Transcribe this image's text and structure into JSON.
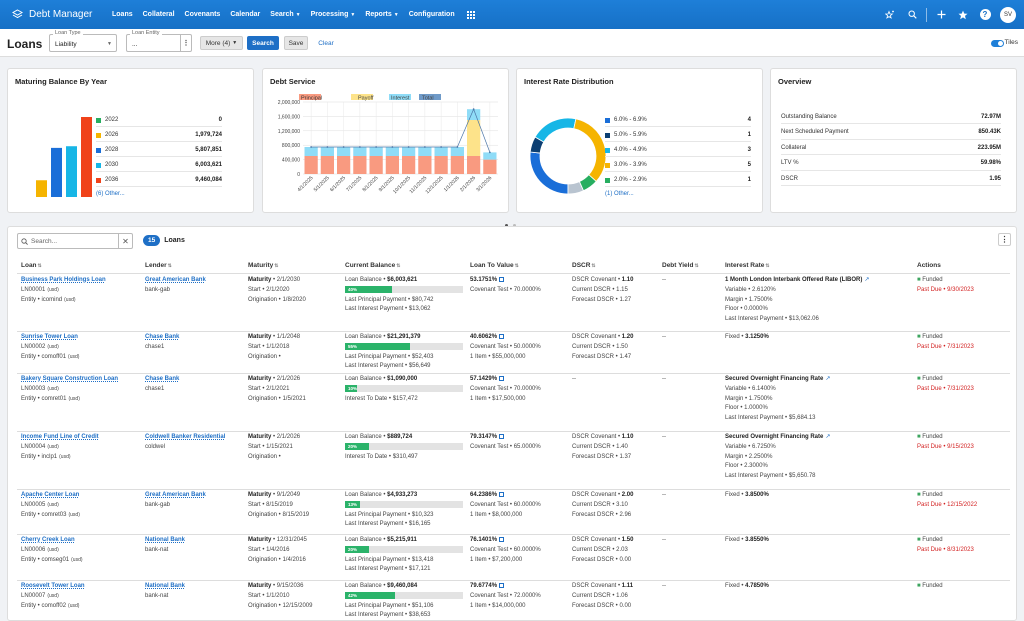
{
  "nav": {
    "app_title": "Debt Manager",
    "items": [
      {
        "label": "Loans",
        "dropdown": false
      },
      {
        "label": "Collateral",
        "dropdown": false
      },
      {
        "label": "Covenants",
        "dropdown": false
      },
      {
        "label": "Calendar",
        "dropdown": false
      },
      {
        "label": "Search",
        "dropdown": true
      },
      {
        "label": "Processing",
        "dropdown": true
      },
      {
        "label": "Reports",
        "dropdown": true
      },
      {
        "label": "Configuration",
        "dropdown": false
      }
    ],
    "avatar": "SV",
    "help": "?"
  },
  "toolbar": {
    "title": "Loans",
    "loan_type_label": "Loan Type",
    "loan_type_value": "Liability",
    "loan_entity_label": "Loan Entity",
    "loan_entity_value": "...",
    "more_label": "More (4)",
    "search_label": "Search",
    "save_label": "Save",
    "clear_label": "Clear",
    "tiles_label": "Tiles"
  },
  "cards": {
    "maturing": {
      "title": "Maturing Balance By Year",
      "rows": [
        {
          "label": "2022",
          "value": "0",
          "color": "#27ae60"
        },
        {
          "label": "2026",
          "value": "1,979,724",
          "color": "#f5b400"
        },
        {
          "label": "2028",
          "value": "5,807,851",
          "color": "#1a6ed8"
        },
        {
          "label": "2030",
          "value": "6,003,621",
          "color": "#17b6e6"
        },
        {
          "label": "2036",
          "value": "9,460,084",
          "color": "#f0421a"
        }
      ],
      "other": "(6) Other..."
    },
    "debt_service": {
      "title": "Debt Service",
      "legend": [
        {
          "label": "Principal",
          "color": "#f99a80"
        },
        {
          "label": "Payoff",
          "color": "#fde38a"
        },
        {
          "label": "Interest",
          "color": "#8fdcf7"
        },
        {
          "label": "Total",
          "color": "#6f9ac8"
        }
      ]
    },
    "interest": {
      "title": "Interest Rate Distribution",
      "rows": [
        {
          "label": "6.0% - 6.9%",
          "value": "4",
          "color": "#1a6ed8"
        },
        {
          "label": "5.0% - 5.9%",
          "value": "1",
          "color": "#0c3f73"
        },
        {
          "label": "4.0% - 4.9%",
          "value": "3",
          "color": "#17b6e6"
        },
        {
          "label": "3.0% - 3.9%",
          "value": "5",
          "color": "#f5b400"
        },
        {
          "label": "2.0% - 2.9%",
          "value": "1",
          "color": "#27ae60"
        }
      ],
      "other": "(1) Other..."
    },
    "overview": {
      "title": "Overview",
      "rows": [
        {
          "label": "Outstanding Balance",
          "value": "72.97M"
        },
        {
          "label": "Next Scheduled Payment",
          "value": "850.43K"
        },
        {
          "label": "Collateral",
          "value": "223.95M"
        },
        {
          "label": "LTV %",
          "value": "59.98%"
        },
        {
          "label": "DSCR",
          "value": "1.95"
        }
      ]
    }
  },
  "chart_data": [
    {
      "type": "bar",
      "title": "Maturing Balance By Year",
      "categories": [
        "2026",
        "2028",
        "2030",
        "2036"
      ],
      "values": [
        1979724,
        5807851,
        6003621,
        9460084
      ],
      "legend": "right"
    },
    {
      "type": "bar",
      "title": "Debt Service",
      "ylim": [
        0,
        2000000
      ],
      "yticks": [
        "2,000,000",
        "1,600,000",
        "1,200,000",
        "800,000",
        "400,000",
        "0"
      ],
      "categories": [
        "4/1/2025",
        "5/1/2025",
        "6/1/2025",
        "7/1/2025",
        "8/1/2025",
        "9/1/2025",
        "10/1/2025",
        "11/1/2025",
        "12/1/2025",
        "1/1/2026",
        "2/1/2026",
        "3/1/2026"
      ],
      "series": [
        {
          "name": "Principal",
          "values": [
            500000,
            500000,
            500000,
            500000,
            500000,
            500000,
            500000,
            500000,
            500000,
            500000,
            500000,
            400000
          ]
        },
        {
          "name": "Payoff",
          "values": [
            0,
            0,
            0,
            0,
            0,
            0,
            0,
            0,
            0,
            0,
            1000000,
            0
          ]
        },
        {
          "name": "Interest",
          "values": [
            250000,
            250000,
            250000,
            250000,
            250000,
            250000,
            250000,
            250000,
            250000,
            250000,
            300000,
            200000
          ]
        },
        {
          "name": "Total",
          "values": [
            750000,
            750000,
            750000,
            750000,
            750000,
            750000,
            750000,
            750000,
            750000,
            750000,
            1800000,
            600000
          ]
        }
      ],
      "legend": "top"
    },
    {
      "type": "pie",
      "title": "Interest Rate Distribution",
      "categories": [
        "6.0% - 6.9%",
        "5.0% - 5.9%",
        "4.0% - 4.9%",
        "3.0% - 3.9%",
        "2.0% - 2.9%",
        "(1) Other..."
      ],
      "values": [
        4,
        1,
        3,
        5,
        1,
        1
      ],
      "legend": "right"
    }
  ],
  "pager_dots": 2,
  "list": {
    "search_placeholder": "Search...",
    "count": "15",
    "count_label": "Loans",
    "headers": [
      "Loan",
      "Lender",
      "Maturity",
      "Current Balance",
      "Loan To Value",
      "DSCR",
      "Debt Yield",
      "Interest Rate",
      "Actions"
    ],
    "rows": [
      {
        "loan_name": "Business Park Holdings Loan",
        "loan_id": "LN00001",
        "loan_ccy": "(usd)",
        "entity": "Entity",
        "entity_val": "icomind",
        "entity_ccy": "(usd)",
        "lender": "Great American Bank",
        "lender_code": "bank-gab",
        "mat_label": "Maturity",
        "maturity": "2/1/2030",
        "start_label": "Start",
        "start": "2/1/2020",
        "orig_label": "Origination",
        "orig": "1/8/2020",
        "bal_label": "Loan Balance",
        "balance": "$6,003,621",
        "progress": 40,
        "progress_text": "40%",
        "b3_label": "Last Principal Payment",
        "b3_val": "$80,742",
        "b4_label": "Last Interest Payment",
        "b4_val": "$13,062",
        "ltv": "53.1751%",
        "ltv2_label": "Covenant Test",
        "ltv2_val": "70.0000%",
        "ltv3_label": "",
        "ltv3_val": "",
        "dscr": [
          {
            "label": "DSCR Covenant",
            "value": "1.10",
            "bold": true
          },
          {
            "label": "Current DSCR",
            "value": "1.15"
          },
          {
            "label": "Forecast DSCR",
            "value": "1.27"
          }
        ],
        "debt_yield": "--",
        "ir_title": "1 Month London Interbank Offered Rate (LIBOR)",
        "ir_kind": "index",
        "ir_rate": "",
        "ir_lines": [
          {
            "label": "Variable",
            "value": "2.6120%"
          },
          {
            "label": "Margin",
            "value": "1.7500%"
          },
          {
            "label": "Floor",
            "value": "0.0000%"
          },
          {
            "label": "Last Interest Payment",
            "value": "$13,062.06"
          }
        ],
        "status": "Funded",
        "past_due": "Past Due",
        "due_date": "9/30/2023"
      },
      {
        "loan_name": "Sunrise Tower Loan",
        "loan_id": "LN00002",
        "loan_ccy": "(usd)",
        "entity": "Entity",
        "entity_val": "comoff01",
        "entity_ccy": "(usd)",
        "lender": "Chase Bank",
        "lender_code": "chase1",
        "mat_label": "Maturity",
        "maturity": "1/1/2048",
        "start_label": "Start",
        "start": "1/1/2018",
        "orig_label": "Origination",
        "orig": "",
        "bal_label": "Loan Balance",
        "balance": "$21,291,379",
        "progress": 55,
        "progress_text": "55%",
        "b3_label": "Last Principal Payment",
        "b3_val": "$52,403",
        "b4_label": "Last Interest Payment",
        "b4_val": "$56,649",
        "ltv": "40.6062%",
        "ltv2_label": "Covenant Test",
        "ltv2_val": "50.0000%",
        "ltv3_label": "1 Item",
        "ltv3_val": "$55,000,000",
        "dscr": [
          {
            "label": "DSCR Covenant",
            "value": "1.20",
            "bold": true
          },
          {
            "label": "Current DSCR",
            "value": "1.50"
          },
          {
            "label": "Forecast DSCR",
            "value": "1.47"
          }
        ],
        "debt_yield": "--",
        "ir_title": "Fixed",
        "ir_kind": "fixed",
        "ir_rate": "3.1250%",
        "ir_lines": [],
        "status": "Funded",
        "past_due": "Past Due",
        "due_date": "7/31/2023"
      },
      {
        "loan_name": "Bakery Square Construction Loan",
        "loan_id": "LN00003",
        "loan_ccy": "(usd)",
        "entity": "Entity",
        "entity_val": "comret01",
        "entity_ccy": "(usd)",
        "lender": "Chase Bank",
        "lender_code": "chase1",
        "mat_label": "Maturity",
        "maturity": "2/1/2026",
        "start_label": "Start",
        "start": "2/1/2021",
        "orig_label": "Origination",
        "orig": "1/5/2021",
        "bal_label": "Loan Balance",
        "balance": "$1,090,000",
        "progress": 10,
        "progress_text": "10%",
        "b3_label": "Interest To Date",
        "b3_val": "$157,472",
        "b4_label": "",
        "b4_val": "",
        "ltv": "57.1429%",
        "ltv2_label": "Covenant Test",
        "ltv2_val": "70.0000%",
        "ltv3_label": "1 Item",
        "ltv3_val": "$17,500,000",
        "dscr": [
          {
            "label": "--",
            "value": ""
          }
        ],
        "debt_yield": "--",
        "ir_title": "Secured Overnight Financing Rate",
        "ir_kind": "index",
        "ir_rate": "",
        "ir_lines": [
          {
            "label": "Variable",
            "value": "6.1400%"
          },
          {
            "label": "Margin",
            "value": "1.7500%"
          },
          {
            "label": "Floor",
            "value": "1.0000%"
          },
          {
            "label": "Last Interest Payment",
            "value": "$5,684.13"
          }
        ],
        "status": "Funded",
        "past_due": "Past Due",
        "due_date": "7/31/2023"
      },
      {
        "loan_name": "Income Fund Line of Credit",
        "loan_id": "LN00004",
        "loan_ccy": "(usd)",
        "entity": "Entity",
        "entity_val": "inclp1",
        "entity_ccy": "(usd)",
        "lender": "Coldwell Banker Residential",
        "lender_code": "coldwel",
        "mat_label": "Maturity",
        "maturity": "2/1/2026",
        "start_label": "Start",
        "start": "1/15/2021",
        "orig_label": "Origination",
        "orig": "",
        "bal_label": "Loan Balance",
        "balance": "$889,724",
        "progress": 20,
        "progress_text": "20%",
        "b3_label": "Interest To Date",
        "b3_val": "$310,497",
        "b4_label": "",
        "b4_val": "",
        "ltv": "79.3147%",
        "ltv2_label": "Covenant Test",
        "ltv2_val": "65.0000%",
        "ltv3_label": "",
        "ltv3_val": "",
        "dscr": [
          {
            "label": "DSCR Covenant",
            "value": "1.10",
            "bold": true
          },
          {
            "label": "Current DSCR",
            "value": "1.40"
          },
          {
            "label": "Forecast DSCR",
            "value": "1.37"
          }
        ],
        "debt_yield": "--",
        "ir_title": "Secured Overnight Financing Rate",
        "ir_kind": "index",
        "ir_rate": "",
        "ir_lines": [
          {
            "label": "Variable",
            "value": "6.7250%"
          },
          {
            "label": "Margin",
            "value": "2.2500%"
          },
          {
            "label": "Floor",
            "value": "2.3000%"
          },
          {
            "label": "Last Interest Payment",
            "value": "$5,650.78"
          }
        ],
        "status": "Funded",
        "past_due": "Past Due",
        "due_date": "9/15/2023"
      },
      {
        "loan_name": "Apache Center Loan",
        "loan_id": "LN00005",
        "loan_ccy": "(usd)",
        "entity": "Entity",
        "entity_val": "comret03",
        "entity_ccy": "(usd)",
        "lender": "Great American Bank",
        "lender_code": "bank-gab",
        "mat_label": "Maturity",
        "maturity": "9/1/2049",
        "start_label": "Start",
        "start": "8/15/2019",
        "orig_label": "Origination",
        "orig": "8/15/2019",
        "bal_label": "Loan Balance",
        "balance": "$4,933,273",
        "progress": 13,
        "progress_text": "13%",
        "b3_label": "Last Principal Payment",
        "b3_val": "$10,323",
        "b4_label": "Last Interest Payment",
        "b4_val": "$16,165",
        "ltv": "64.2386%",
        "ltv2_label": "Covenant Test",
        "ltv2_val": "60.0000%",
        "ltv3_label": "1 Item",
        "ltv3_val": "$8,000,000",
        "dscr": [
          {
            "label": "DSCR Covenant",
            "value": "2.00",
            "bold": true
          },
          {
            "label": "Current DSCR",
            "value": "3.10"
          },
          {
            "label": "Forecast DSCR",
            "value": "2.96"
          }
        ],
        "debt_yield": "--",
        "ir_title": "Fixed",
        "ir_kind": "fixed",
        "ir_rate": "3.8500%",
        "ir_lines": [],
        "status": "Funded",
        "past_due": "Past Due",
        "due_date": "12/15/2022"
      },
      {
        "loan_name": "Cherry Creek Loan",
        "loan_id": "LN00006",
        "loan_ccy": "(usd)",
        "entity": "Entity",
        "entity_val": "comseg01",
        "entity_ccy": "(usd)",
        "lender": "National Bank",
        "lender_code": "bank-nat",
        "mat_label": "Maturity",
        "maturity": "12/31/2045",
        "start_label": "Start",
        "start": "1/4/2016",
        "orig_label": "Origination",
        "orig": "1/4/2016",
        "bal_label": "Loan Balance",
        "balance": "$5,215,911",
        "progress": 20,
        "progress_text": "20%",
        "b3_label": "Last Principal Payment",
        "b3_val": "$13,418",
        "b4_label": "Last Interest Payment",
        "b4_val": "$17,121",
        "ltv": "76.1401%",
        "ltv2_label": "Covenant Test",
        "ltv2_val": "60.0000%",
        "ltv3_label": "1 Item",
        "ltv3_val": "$7,200,000",
        "dscr": [
          {
            "label": "DSCR Covenant",
            "value": "1.50",
            "bold": true
          },
          {
            "label": "Current DSCR",
            "value": "2.03"
          },
          {
            "label": "Forecast DSCR",
            "value": "0.00"
          }
        ],
        "debt_yield": "--",
        "ir_title": "Fixed",
        "ir_kind": "fixed",
        "ir_rate": "3.8550%",
        "ir_lines": [],
        "status": "Funded",
        "past_due": "Past Due",
        "due_date": "8/31/2023"
      },
      {
        "loan_name": "Roosevelt Tower Loan",
        "loan_id": "LN00007",
        "loan_ccy": "(usd)",
        "entity": "Entity",
        "entity_val": "comoff02",
        "entity_ccy": "(usd)",
        "lender": "National Bank",
        "lender_code": "bank-nat",
        "mat_label": "Maturity",
        "maturity": "9/15/2036",
        "start_label": "Start",
        "start": "1/1/2010",
        "orig_label": "Origination",
        "orig": "12/15/2009",
        "bal_label": "Loan Balance",
        "balance": "$9,460,084",
        "progress": 42,
        "progress_text": "42%",
        "b3_label": "Last Principal Payment",
        "b3_val": "$51,106",
        "b4_label": "Last Interest Payment",
        "b4_val": "$38,653",
        "ltv": "79.6774%",
        "ltv2_label": "Covenant Test",
        "ltv2_val": "72.0000%",
        "ltv3_label": "1 Item",
        "ltv3_val": "$14,000,000",
        "dscr": [
          {
            "label": "DSCR Covenant",
            "value": "1.11",
            "bold": true
          },
          {
            "label": "Current DSCR",
            "value": "1.06"
          },
          {
            "label": "Forecast DSCR",
            "value": "0.00"
          }
        ],
        "debt_yield": "--",
        "ir_title": "Fixed",
        "ir_kind": "fixed",
        "ir_rate": "4.7850%",
        "ir_lines": [],
        "status": "Funded",
        "past_due": "",
        "due_date": ""
      }
    ]
  }
}
